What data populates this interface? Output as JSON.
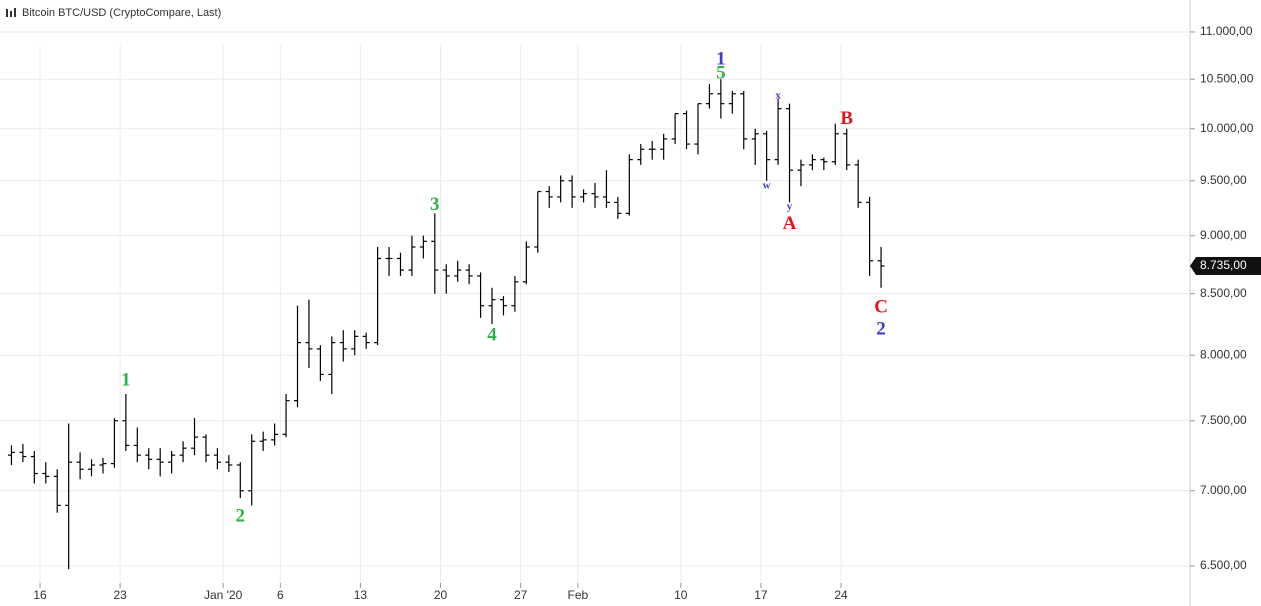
{
  "chart_data": {
    "type": "ohlc",
    "title": "Bitcoin BTC/USD (CryptoCompare, Last)",
    "log_scale": true,
    "grid": true,
    "color": "#000000",
    "xlim": [
      "2019-12-12T12:00",
      "2020-03-25T12:00"
    ],
    "xticks": [
      {
        "value": "2019-12-16",
        "label": "16"
      },
      {
        "value": "2019-12-23",
        "label": "23"
      },
      {
        "value": "2020-01-01",
        "label": "Jan '20"
      },
      {
        "value": "2020-01-06",
        "label": "6"
      },
      {
        "value": "2020-01-13",
        "label": "13"
      },
      {
        "value": "2020-01-20",
        "label": "20"
      },
      {
        "value": "2020-01-27",
        "label": "27"
      },
      {
        "value": "2020-02-01",
        "label": "Feb"
      },
      {
        "value": "2020-02-10",
        "label": "10"
      },
      {
        "value": "2020-02-17",
        "label": "17"
      },
      {
        "value": "2020-02-24",
        "label": "24"
      }
    ],
    "ylim": [
      6392,
      11352
    ],
    "yticks": [
      {
        "value": 6500,
        "label": "6.500,00"
      },
      {
        "value": 7000,
        "label": "7.000,00"
      },
      {
        "value": 7500,
        "label": "7.500,00"
      },
      {
        "value": 8000,
        "label": "8.000,00"
      },
      {
        "value": 8500,
        "label": "8.500,00"
      },
      {
        "value": 9000,
        "label": "9.000,00"
      },
      {
        "value": 9500,
        "label": "9.500,00"
      },
      {
        "value": 10000,
        "label": "10.000,00"
      },
      {
        "value": 10500,
        "label": "10.500,00"
      },
      {
        "value": 11000,
        "label": "11.000,00"
      }
    ],
    "last_price": {
      "value": 8735,
      "label": "8.735,00"
    },
    "x": [
      "2019-12-13",
      "2019-12-14",
      "2019-12-15",
      "2019-12-16",
      "2019-12-17",
      "2019-12-18",
      "2019-12-19",
      "2019-12-20",
      "2019-12-21",
      "2019-12-22",
      "2019-12-23",
      "2019-12-24",
      "2019-12-25",
      "2019-12-26",
      "2019-12-27",
      "2019-12-28",
      "2019-12-29",
      "2019-12-30",
      "2019-12-31",
      "2020-01-01",
      "2020-01-02",
      "2020-01-03",
      "2020-01-04",
      "2020-01-05",
      "2020-01-06",
      "2020-01-07",
      "2020-01-08",
      "2020-01-09",
      "2020-01-10",
      "2020-01-11",
      "2020-01-12",
      "2020-01-13",
      "2020-01-14",
      "2020-01-15",
      "2020-01-16",
      "2020-01-17",
      "2020-01-18",
      "2020-01-19",
      "2020-01-20",
      "2020-01-21",
      "2020-01-22",
      "2020-01-23",
      "2020-01-24",
      "2020-01-25",
      "2020-01-26",
      "2020-01-27",
      "2020-01-28",
      "2020-01-29",
      "2020-01-30",
      "2020-01-31",
      "2020-02-01",
      "2020-02-02",
      "2020-02-03",
      "2020-02-04",
      "2020-02-05",
      "2020-02-06",
      "2020-02-07",
      "2020-02-08",
      "2020-02-09",
      "2020-02-10",
      "2020-02-11",
      "2020-02-12",
      "2020-02-13",
      "2020-02-14",
      "2020-02-15",
      "2020-02-16",
      "2020-02-17",
      "2020-02-18",
      "2020-02-19",
      "2020-02-20",
      "2020-02-21",
      "2020-02-22",
      "2020-02-23",
      "2020-02-24",
      "2020-02-25",
      "2020-02-26",
      "2020-02-27"
    ],
    "open": [
      7250,
      7270,
      7240,
      7120,
      7100,
      6900,
      7200,
      7150,
      7180,
      7190,
      7500,
      7320,
      7250,
      7220,
      7200,
      7250,
      7300,
      7380,
      7250,
      7200,
      7180,
      7000,
      7350,
      7360,
      7400,
      7650,
      8100,
      8050,
      7850,
      8100,
      8050,
      8150,
      8100,
      8800,
      8800,
      8700,
      8900,
      8950,
      8700,
      8650,
      8700,
      8650,
      8400,
      8450,
      8400,
      8600,
      8900,
      9400,
      9350,
      9500,
      9350,
      9380,
      9350,
      9300,
      9200,
      9700,
      9800,
      9800,
      9900,
      10150,
      9850,
      10250,
      10350,
      10250,
      10350,
      9900,
      9950,
      9700,
      10200,
      9600,
      9650,
      9700,
      9680,
      9950,
      9650,
      9300,
      8780
    ],
    "high": [
      7320,
      7330,
      7280,
      7200,
      7150,
      7480,
      7270,
      7220,
      7230,
      7520,
      7700,
      7450,
      7300,
      7300,
      7280,
      7350,
      7520,
      7400,
      7300,
      7250,
      7200,
      7400,
      7420,
      7480,
      7700,
      8400,
      8450,
      8080,
      8150,
      8200,
      8200,
      8180,
      8900,
      8900,
      8850,
      9000,
      9000,
      9200,
      8750,
      8780,
      8750,
      8680,
      8550,
      8480,
      8650,
      8950,
      9400,
      9450,
      9550,
      9550,
      9420,
      9480,
      9600,
      9350,
      9750,
      9850,
      9880,
      9950,
      10150,
      10180,
      10250,
      10450,
      10500,
      10380,
      10380,
      10000,
      9980,
      10300,
      10250,
      9700,
      9750,
      9720,
      10050,
      10000,
      9700,
      9350,
      8900
    ],
    "low": [
      7180,
      7200,
      7050,
      7050,
      6850,
      6480,
      7080,
      7100,
      7120,
      7160,
      7280,
      7200,
      7150,
      7100,
      7120,
      7200,
      7250,
      7200,
      7150,
      7130,
      6950,
      6900,
      7280,
      7320,
      7380,
      7600,
      7900,
      7800,
      7700,
      7950,
      8000,
      8050,
      8080,
      8650,
      8650,
      8650,
      8800,
      8500,
      8500,
      8600,
      8580,
      8300,
      8250,
      8320,
      8350,
      8580,
      8850,
      9250,
      9300,
      9250,
      9300,
      9250,
      9250,
      9150,
      9180,
      9650,
      9700,
      9700,
      9850,
      9800,
      9750,
      10200,
      10100,
      10150,
      9800,
      9650,
      9500,
      9650,
      9300,
      9450,
      9600,
      9600,
      9650,
      9600,
      9250,
      8650,
      8550
    ],
    "close": [
      7270,
      7240,
      7120,
      7100,
      6900,
      7200,
      7150,
      7180,
      7190,
      7500,
      7320,
      7250,
      7220,
      7200,
      7250,
      7300,
      7380,
      7250,
      7200,
      7180,
      7000,
      7350,
      7360,
      7400,
      7650,
      8100,
      8050,
      7850,
      8100,
      8050,
      8150,
      8100,
      8800,
      8800,
      8700,
      8900,
      8950,
      8700,
      8650,
      8700,
      8650,
      8400,
      8450,
      8400,
      8600,
      8900,
      9400,
      9350,
      9500,
      9350,
      9380,
      9350,
      9300,
      9200,
      9700,
      9800,
      9800,
      9900,
      10150,
      9850,
      10250,
      10350,
      10250,
      10350,
      9900,
      9950,
      9700,
      10200,
      9600,
      9650,
      9700,
      9680,
      9950,
      9650,
      9300,
      8780,
      8735
    ],
    "annotations": [
      {
        "text": "1",
        "color": "#2db34a",
        "x": "2019-12-23",
        "y": 7800
      },
      {
        "text": "2",
        "color": "#2db34a",
        "x": "2020-01-02",
        "y": 6820
      },
      {
        "text": "3",
        "color": "#2db34a",
        "x": "2020-01-19",
        "y": 9270
      },
      {
        "text": "4",
        "color": "#2db34a",
        "x": "2020-01-24",
        "y": 8150
      },
      {
        "text": "1",
        "color": "#3a3fc4",
        "x": "2020-02-13",
        "y": 10700
      },
      {
        "text": "5",
        "color": "#2db34a",
        "x": "2020-02-13",
        "y": 10550
      },
      {
        "text": "w",
        "color": "#3a3fc4",
        "x": "2020-02-17",
        "y": 9450,
        "small": true
      },
      {
        "text": "x",
        "color": "#3a3fc4",
        "x": "2020-02-18",
        "y": 10330,
        "small": true
      },
      {
        "text": "y",
        "color": "#3a3fc4",
        "x": "2020-02-19",
        "y": 9260,
        "small": true
      },
      {
        "text": "A",
        "color": "#e0161e",
        "x": "2020-02-19",
        "y": 9100
      },
      {
        "text": "B",
        "color": "#e0161e",
        "x": "2020-02-24",
        "y": 10090
      },
      {
        "text": "C",
        "color": "#e0161e",
        "x": "2020-02-27",
        "y": 8380
      },
      {
        "text": "2",
        "color": "#3a3fc4",
        "x": "2020-02-27",
        "y": 8200
      }
    ]
  }
}
